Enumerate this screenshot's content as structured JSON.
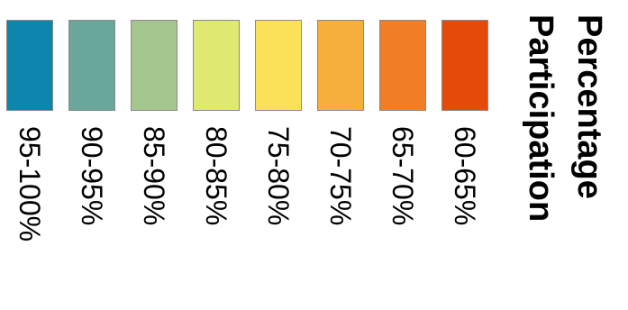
{
  "legend": {
    "title_lines": [
      "Percentage",
      "Participation"
    ],
    "items": [
      {
        "label": "95-100%",
        "color": "#0e85ad"
      },
      {
        "label": "90-95%",
        "color": "#6aa79b"
      },
      {
        "label": "85-90%",
        "color": "#a4c68e"
      },
      {
        "label": "80-85%",
        "color": "#dfe870"
      },
      {
        "label": "75-80%",
        "color": "#fbe05a"
      },
      {
        "label": "70-75%",
        "color": "#f6ae3c"
      },
      {
        "label": "65-70%",
        "color": "#ef7e27"
      },
      {
        "label": "60-65%",
        "color": "#e44b0a"
      }
    ]
  }
}
